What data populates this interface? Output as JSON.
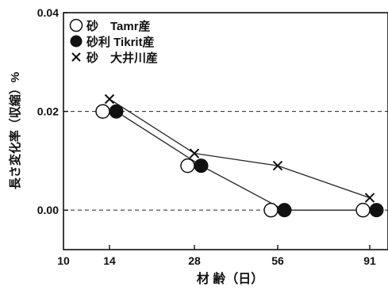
{
  "chart_data": {
    "type": "scatter",
    "xlabel": "材 齢（日）",
    "ylabel": "長さ変化率（収縮）%",
    "x_ticks": [
      "10",
      "14",
      "28",
      "56",
      "91"
    ],
    "y_ticks": [
      "0.04",
      "0.02",
      "0.00"
    ],
    "ylim": [
      -0.008,
      0.04
    ],
    "reference_lines": [
      0.02,
      0.0
    ],
    "grid": false,
    "legend_position": "top-left",
    "series": [
      {
        "name": "砂　Tamr産",
        "marker": "open-circle",
        "points": [
          {
            "x": 14,
            "y": 0.02
          },
          {
            "x": 28,
            "y": 0.009
          },
          {
            "x": 56,
            "y": 0.0
          },
          {
            "x": 91,
            "y": 0.0
          }
        ]
      },
      {
        "name": "砂利 Tikrit産",
        "marker": "filled-circle",
        "points": [
          {
            "x": 14,
            "y": 0.02
          },
          {
            "x": 28,
            "y": 0.009
          },
          {
            "x": 56,
            "y": 0.0
          },
          {
            "x": 91,
            "y": 0.0
          }
        ]
      },
      {
        "name": "砂　大井川産",
        "marker": "cross",
        "points": [
          {
            "x": 14,
            "y": 0.0225
          },
          {
            "x": 28,
            "y": 0.0115
          },
          {
            "x": 56,
            "y": 0.009
          },
          {
            "x": 91,
            "y": 0.0025
          }
        ]
      }
    ]
  }
}
